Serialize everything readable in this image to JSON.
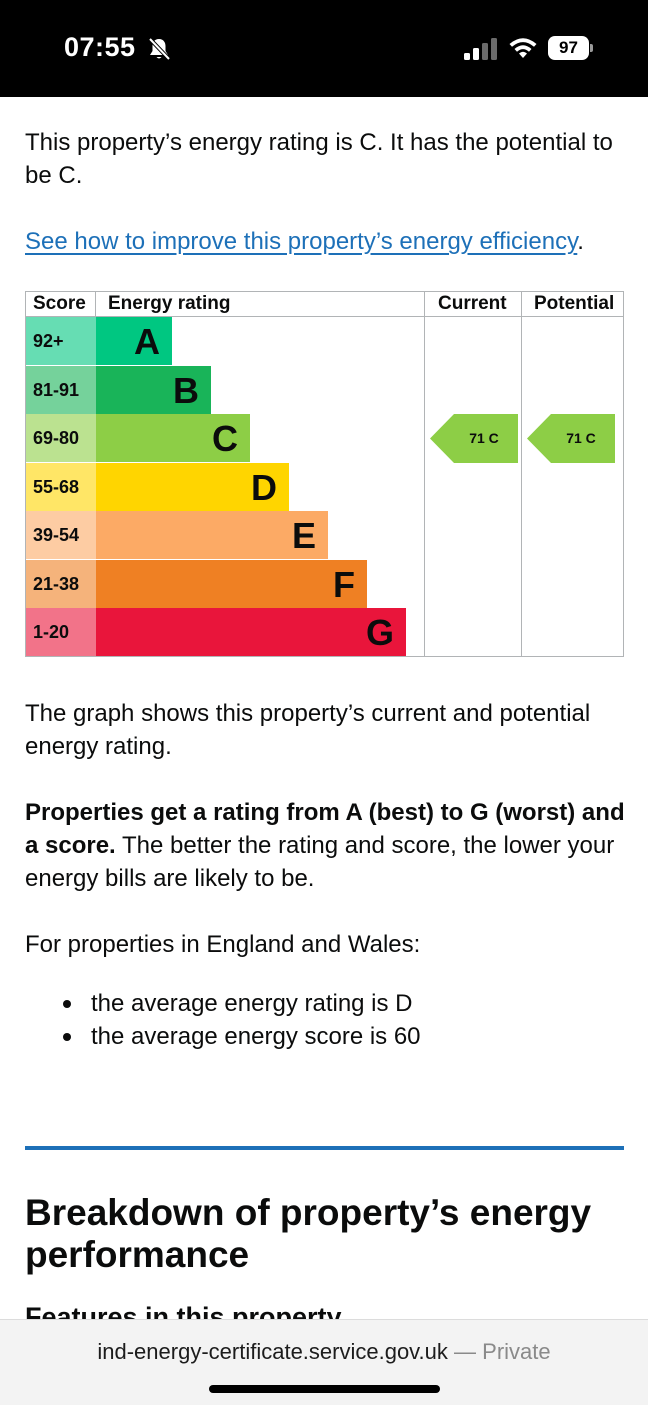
{
  "status_bar": {
    "time": "07:55",
    "battery": "97",
    "icons": [
      "bell-muted-icon",
      "signal-icon",
      "wifi-icon",
      "battery-icon"
    ]
  },
  "intro_text": "This property’s energy rating is C. It has the potential to be C.",
  "improve_link": "See how to improve this property’s energy efficiency",
  "improve_link_suffix": ".",
  "chart_data": {
    "type": "table",
    "columns": [
      "Score",
      "Energy rating",
      "Current",
      "Potential"
    ],
    "bands": [
      {
        "score": "92+",
        "letter": "A",
        "color": "#00c781"
      },
      {
        "score": "81-91",
        "letter": "B",
        "color": "#19b459"
      },
      {
        "score": "69-80",
        "letter": "C",
        "color": "#8dce46"
      },
      {
        "score": "55-68",
        "letter": "D",
        "color": "#ffd500"
      },
      {
        "score": "39-54",
        "letter": "E",
        "color": "#fcaa65"
      },
      {
        "score": "21-38",
        "letter": "F",
        "color": "#ef8023"
      },
      {
        "score": "1-20",
        "letter": "G",
        "color": "#e9153b"
      }
    ],
    "current": {
      "score": 71,
      "letter": "C",
      "label": "71 C"
    },
    "potential": {
      "score": 71,
      "letter": "C",
      "label": "71 C"
    }
  },
  "graph_text": "The graph shows this property’s current and potential energy rating.",
  "rating_bold": "Properties get a rating from A (best) to G (worst) and a score.",
  "rating_rest": " The better the rating and score, the lower your energy bills are likely to be.",
  "england_wales": "For properties in England and Wales:",
  "bullets": [
    "the average energy rating is D",
    "the average energy score is 60"
  ],
  "breakdown_heading": "Breakdown of property’s energy performance",
  "features_heading": "Features in this property",
  "url_bar": {
    "domain": "ind-energy-certificate.service.gov.uk",
    "separator": " — ",
    "mode": "Private"
  }
}
